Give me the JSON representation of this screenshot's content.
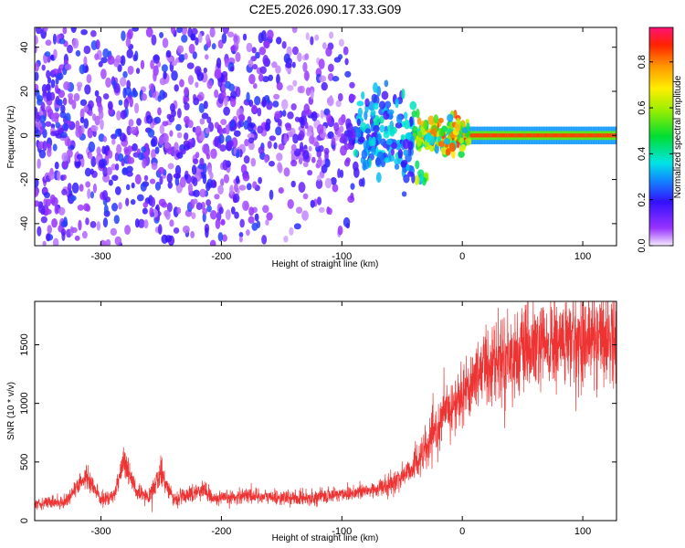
{
  "title": "C2E5.2026.090.17.33.G09",
  "chart_data": [
    {
      "type": "heatmap",
      "xlabel": "Height of straight line (km)",
      "ylabel": "Frequency (Hz)",
      "xlim": [
        -355,
        128
      ],
      "ylim": [
        -50,
        49
      ],
      "x_ticks": [
        -300,
        -200,
        -100,
        0,
        100
      ],
      "y_ticks": [
        -40,
        -20,
        0,
        20,
        40
      ],
      "colorbar": {
        "label": "Normalized spectral amplitude",
        "range": [
          0.0,
          0.95
        ],
        "ticks": [
          0.0,
          0.2,
          0.4,
          0.6,
          0.8
        ]
      },
      "description_points": [
        {
          "x": -350,
          "y_center": 5,
          "spread": 45,
          "amplitude": 0.15
        },
        {
          "x": -250,
          "y_center": 0,
          "spread": 45,
          "amplitude": 0.18
        },
        {
          "x": -150,
          "y_center": 0,
          "spread": 30,
          "amplitude": 0.15
        },
        {
          "x": -80,
          "y_center": 0,
          "spread": 10,
          "amplitude": 0.3
        },
        {
          "x": -40,
          "y_center": 0,
          "spread": 5,
          "amplitude": 0.5
        },
        {
          "x": 0,
          "y_center": 0,
          "spread": 3,
          "amplitude": 0.9
        },
        {
          "x": 125,
          "y_center": 0,
          "spread": 3,
          "amplitude": 0.9
        }
      ]
    },
    {
      "type": "line",
      "xlabel": "Height of straight line (km)",
      "ylabel": "SNR (10 * v/v)",
      "xlim": [
        -355,
        128
      ],
      "ylim": [
        0,
        1870
      ],
      "x_ticks": [
        -300,
        -200,
        -100,
        0,
        100
      ],
      "y_ticks": [
        0,
        500,
        1000,
        1500
      ],
      "color": "#ee3333",
      "x": [
        -355,
        -330,
        -312,
        -300,
        -290,
        -281,
        -270,
        -260,
        -250,
        -240,
        -225,
        -215,
        -205,
        -195,
        -180,
        -160,
        -140,
        -120,
        -100,
        -80,
        -60,
        -45,
        -30,
        -15,
        -5,
        5,
        15,
        30,
        50,
        70,
        90,
        110,
        128
      ],
      "y": [
        150,
        160,
        380,
        180,
        200,
        520,
        230,
        200,
        420,
        180,
        230,
        270,
        180,
        190,
        220,
        200,
        190,
        200,
        230,
        250,
        300,
        420,
        600,
        900,
        1000,
        1150,
        1300,
        1380,
        1430,
        1480,
        1530,
        1560,
        1580
      ]
    }
  ]
}
